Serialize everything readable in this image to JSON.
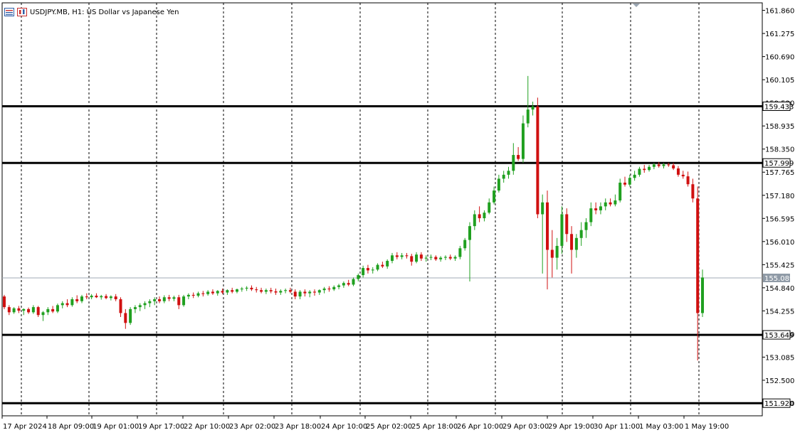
{
  "chart_window": {
    "symbol_title": "USDJPY.MB, H1:  US Dollar vs Japanese Yen",
    "icons": [
      "chart-list-icon",
      "chart-type-icon"
    ]
  },
  "colors": {
    "bull": "#20a020",
    "bear": "#d01010",
    "grid": "#000000",
    "level_line": "#000000",
    "current_price_line": "#a0aab4",
    "label_bg": "#ffffff",
    "current_label_bg": "#8f9aa6"
  },
  "chart_data": {
    "type": "candlestick",
    "title": "USDJPY.MB, H1:  US Dollar vs Japanese Yen",
    "ylim": [
      151.6,
      162.05
    ],
    "y_ticks": [
      "161.860",
      "161.275",
      "160.690",
      "160.105",
      "159.520",
      "158.935",
      "158.350",
      "157.765",
      "157.180",
      "156.595",
      "156.010",
      "155.425",
      "154.840",
      "154.255",
      "153.670",
      "153.085",
      "152.500",
      "151.920"
    ],
    "x_ticks": [
      "17 Apr 2024",
      "18 Apr 09:00",
      "19 Apr 01:00",
      "19 Apr 17:00",
      "22 Apr 10:00",
      "23 Apr 02:00",
      "23 Apr 18:00",
      "24 Apr 10:00",
      "25 Apr 02:00",
      "25 Apr 18:00",
      "26 Apr 10:00",
      "29 Apr 03:00",
      "29 Apr 19:00",
      "30 Apr 11:00",
      "1 May 03:00",
      "1 May 19:00"
    ],
    "horizontal_levels": [
      "159.433",
      "157.999",
      "153.649",
      "151.920"
    ],
    "current_price": "155.089",
    "candles": [
      [
        154.62,
        154.66,
        154.3,
        154.35
      ],
      [
        154.35,
        154.4,
        154.15,
        154.22
      ],
      [
        154.22,
        154.35,
        154.18,
        154.32
      ],
      [
        154.32,
        154.38,
        154.2,
        154.26
      ],
      [
        154.26,
        154.32,
        154.15,
        154.3
      ],
      [
        154.3,
        154.34,
        154.18,
        154.22
      ],
      [
        154.22,
        154.4,
        154.18,
        154.35
      ],
      [
        154.35,
        154.38,
        154.1,
        154.15
      ],
      [
        154.15,
        154.25,
        154.0,
        154.22
      ],
      [
        154.22,
        154.35,
        154.15,
        154.3
      ],
      [
        154.3,
        154.38,
        154.2,
        154.24
      ],
      [
        154.24,
        154.44,
        154.2,
        154.4
      ],
      [
        154.4,
        154.5,
        154.32,
        154.45
      ],
      [
        154.45,
        154.55,
        154.35,
        154.4
      ],
      [
        154.4,
        154.6,
        154.36,
        154.55
      ],
      [
        154.55,
        154.65,
        154.45,
        154.5
      ],
      [
        154.5,
        154.66,
        154.45,
        154.62
      ],
      [
        154.62,
        154.7,
        154.55,
        154.6
      ],
      [
        154.6,
        154.68,
        154.55,
        154.64
      ],
      [
        154.64,
        154.7,
        154.58,
        154.6
      ],
      [
        154.6,
        154.66,
        154.54,
        154.63
      ],
      [
        154.63,
        154.68,
        154.55,
        154.58
      ],
      [
        154.58,
        154.65,
        154.52,
        154.62
      ],
      [
        154.62,
        154.68,
        154.5,
        154.55
      ],
      [
        154.55,
        154.6,
        154.1,
        154.2
      ],
      [
        154.2,
        154.3,
        153.8,
        153.95
      ],
      [
        153.95,
        154.35,
        153.9,
        154.3
      ],
      [
        154.3,
        154.4,
        154.2,
        154.35
      ],
      [
        154.35,
        154.45,
        154.25,
        154.4
      ],
      [
        154.4,
        154.5,
        154.3,
        154.45
      ],
      [
        154.45,
        154.55,
        154.35,
        154.5
      ],
      [
        154.5,
        154.6,
        154.4,
        154.55
      ],
      [
        154.55,
        154.62,
        154.45,
        154.5
      ],
      [
        154.5,
        154.65,
        154.45,
        154.6
      ],
      [
        154.6,
        154.66,
        154.5,
        154.56
      ],
      [
        154.56,
        154.64,
        154.5,
        154.6
      ],
      [
        154.6,
        154.66,
        154.3,
        154.4
      ],
      [
        154.4,
        154.66,
        154.36,
        154.62
      ],
      [
        154.62,
        154.7,
        154.55,
        154.66
      ],
      [
        154.66,
        154.72,
        154.58,
        154.64
      ],
      [
        154.64,
        154.74,
        154.6,
        154.7
      ],
      [
        154.7,
        154.76,
        154.62,
        154.68
      ],
      [
        154.68,
        154.78,
        154.64,
        154.74
      ],
      [
        154.74,
        154.8,
        154.66,
        154.7
      ],
      [
        154.7,
        154.78,
        154.64,
        154.76
      ],
      [
        154.76,
        154.82,
        154.68,
        154.72
      ],
      [
        154.72,
        154.8,
        154.66,
        154.78
      ],
      [
        154.78,
        154.84,
        154.7,
        154.74
      ],
      [
        154.74,
        154.82,
        154.7,
        154.8
      ],
      [
        154.8,
        154.86,
        154.74,
        154.82
      ],
      [
        154.82,
        154.88,
        154.76,
        154.84
      ],
      [
        154.84,
        154.9,
        154.76,
        154.8
      ],
      [
        154.8,
        154.86,
        154.72,
        154.78
      ],
      [
        154.78,
        154.84,
        154.7,
        154.74
      ],
      [
        154.74,
        154.82,
        154.68,
        154.78
      ],
      [
        154.78,
        154.84,
        154.7,
        154.75
      ],
      [
        154.75,
        154.82,
        154.66,
        154.72
      ],
      [
        154.72,
        154.8,
        154.66,
        154.76
      ],
      [
        154.76,
        154.82,
        154.7,
        154.78
      ],
      [
        154.78,
        154.84,
        154.7,
        154.74
      ],
      [
        154.74,
        154.8,
        154.55,
        154.62
      ],
      [
        154.62,
        154.78,
        154.55,
        154.74
      ],
      [
        154.74,
        154.8,
        154.62,
        154.7
      ],
      [
        154.7,
        154.78,
        154.6,
        154.74
      ],
      [
        154.74,
        154.8,
        154.64,
        154.72
      ],
      [
        154.72,
        154.8,
        154.66,
        154.78
      ],
      [
        154.78,
        154.86,
        154.7,
        154.82
      ],
      [
        154.82,
        154.88,
        154.74,
        154.8
      ],
      [
        154.8,
        154.9,
        154.76,
        154.86
      ],
      [
        154.86,
        154.94,
        154.8,
        154.9
      ],
      [
        154.9,
        155.0,
        154.84,
        154.96
      ],
      [
        154.96,
        155.04,
        154.88,
        154.92
      ],
      [
        154.92,
        155.1,
        154.88,
        155.06
      ],
      [
        155.06,
        155.2,
        155.0,
        155.16
      ],
      [
        155.16,
        155.4,
        155.1,
        155.34
      ],
      [
        155.34,
        155.42,
        155.2,
        155.28
      ],
      [
        155.28,
        155.36,
        155.2,
        155.3
      ],
      [
        155.3,
        155.46,
        155.26,
        155.42
      ],
      [
        155.42,
        155.5,
        155.34,
        155.38
      ],
      [
        155.38,
        155.56,
        155.32,
        155.52
      ],
      [
        155.52,
        155.72,
        155.46,
        155.66
      ],
      [
        155.66,
        155.74,
        155.56,
        155.62
      ],
      [
        155.62,
        155.72,
        155.56,
        155.66
      ],
      [
        155.66,
        155.72,
        155.58,
        155.64
      ],
      [
        155.64,
        155.7,
        155.4,
        155.5
      ],
      [
        155.5,
        155.74,
        155.46,
        155.68
      ],
      [
        155.68,
        155.74,
        155.52,
        155.58
      ],
      [
        155.58,
        155.66,
        155.5,
        155.6
      ],
      [
        155.6,
        155.68,
        155.54,
        155.62
      ],
      [
        155.62,
        155.66,
        155.52,
        155.56
      ],
      [
        155.56,
        155.64,
        155.5,
        155.6
      ],
      [
        155.6,
        155.66,
        155.54,
        155.62
      ],
      [
        155.62,
        155.68,
        155.54,
        155.58
      ],
      [
        155.58,
        155.66,
        155.52,
        155.62
      ],
      [
        155.62,
        155.9,
        155.56,
        155.84
      ],
      [
        155.84,
        156.1,
        155.78,
        156.05
      ],
      [
        156.05,
        156.5,
        155.0,
        156.4
      ],
      [
        156.4,
        156.8,
        156.3,
        156.7
      ],
      [
        156.7,
        156.9,
        156.5,
        156.6
      ],
      [
        156.6,
        156.8,
        156.52,
        156.74
      ],
      [
        156.74,
        157.1,
        156.7,
        157.0
      ],
      [
        157.0,
        157.4,
        156.95,
        157.3
      ],
      [
        157.3,
        157.7,
        157.25,
        157.6
      ],
      [
        157.6,
        157.8,
        157.5,
        157.7
      ],
      [
        157.7,
        157.9,
        157.6,
        157.8
      ],
      [
        157.8,
        158.5,
        157.7,
        158.2
      ],
      [
        158.2,
        158.4,
        158.05,
        158.1
      ],
      [
        158.1,
        159.2,
        158.0,
        159.0
      ],
      [
        159.0,
        160.2,
        158.9,
        159.35
      ],
      [
        159.35,
        159.55,
        159.2,
        159.43
      ],
      [
        159.43,
        159.65,
        156.6,
        156.7
      ],
      [
        156.7,
        157.2,
        155.2,
        157.0
      ],
      [
        157.0,
        157.3,
        154.8,
        155.8
      ],
      [
        155.8,
        156.3,
        155.1,
        155.6
      ],
      [
        155.6,
        156.1,
        155.3,
        155.9
      ],
      [
        155.9,
        156.9,
        155.7,
        156.7
      ],
      [
        156.7,
        156.85,
        156.0,
        156.2
      ],
      [
        156.2,
        156.4,
        155.2,
        155.8
      ],
      [
        155.8,
        156.2,
        155.6,
        156.1
      ],
      [
        156.1,
        156.5,
        155.9,
        156.3
      ],
      [
        156.3,
        156.6,
        156.1,
        156.5
      ],
      [
        156.5,
        157.0,
        156.4,
        156.85
      ],
      [
        156.85,
        157.0,
        156.7,
        156.8
      ],
      [
        156.8,
        157.0,
        156.7,
        156.9
      ],
      [
        156.9,
        157.1,
        156.8,
        157.0
      ],
      [
        157.0,
        157.1,
        156.9,
        156.95
      ],
      [
        156.95,
        157.2,
        156.9,
        157.05
      ],
      [
        157.05,
        157.6,
        157.0,
        157.5
      ],
      [
        157.5,
        157.65,
        157.4,
        157.45
      ],
      [
        157.45,
        157.7,
        157.4,
        157.62
      ],
      [
        157.62,
        157.8,
        157.55,
        157.7
      ],
      [
        157.7,
        157.9,
        157.65,
        157.85
      ],
      [
        157.85,
        157.95,
        157.75,
        157.82
      ],
      [
        157.82,
        157.95,
        157.78,
        157.9
      ],
      [
        157.9,
        158.0,
        157.84,
        157.96
      ],
      [
        157.96,
        158.02,
        157.88,
        157.92
      ],
      [
        157.92,
        158.0,
        157.86,
        157.96
      ],
      [
        157.96,
        158.0,
        157.9,
        157.94
      ],
      [
        157.94,
        158.0,
        157.82,
        157.86
      ],
      [
        157.86,
        157.92,
        157.65,
        157.7
      ],
      [
        157.7,
        157.8,
        157.6,
        157.66
      ],
      [
        157.66,
        157.78,
        157.4,
        157.46
      ],
      [
        157.46,
        157.6,
        157.0,
        157.1
      ],
      [
        157.1,
        157.4,
        153.0,
        154.2
      ],
      [
        154.2,
        155.3,
        154.1,
        155.1
      ]
    ]
  }
}
